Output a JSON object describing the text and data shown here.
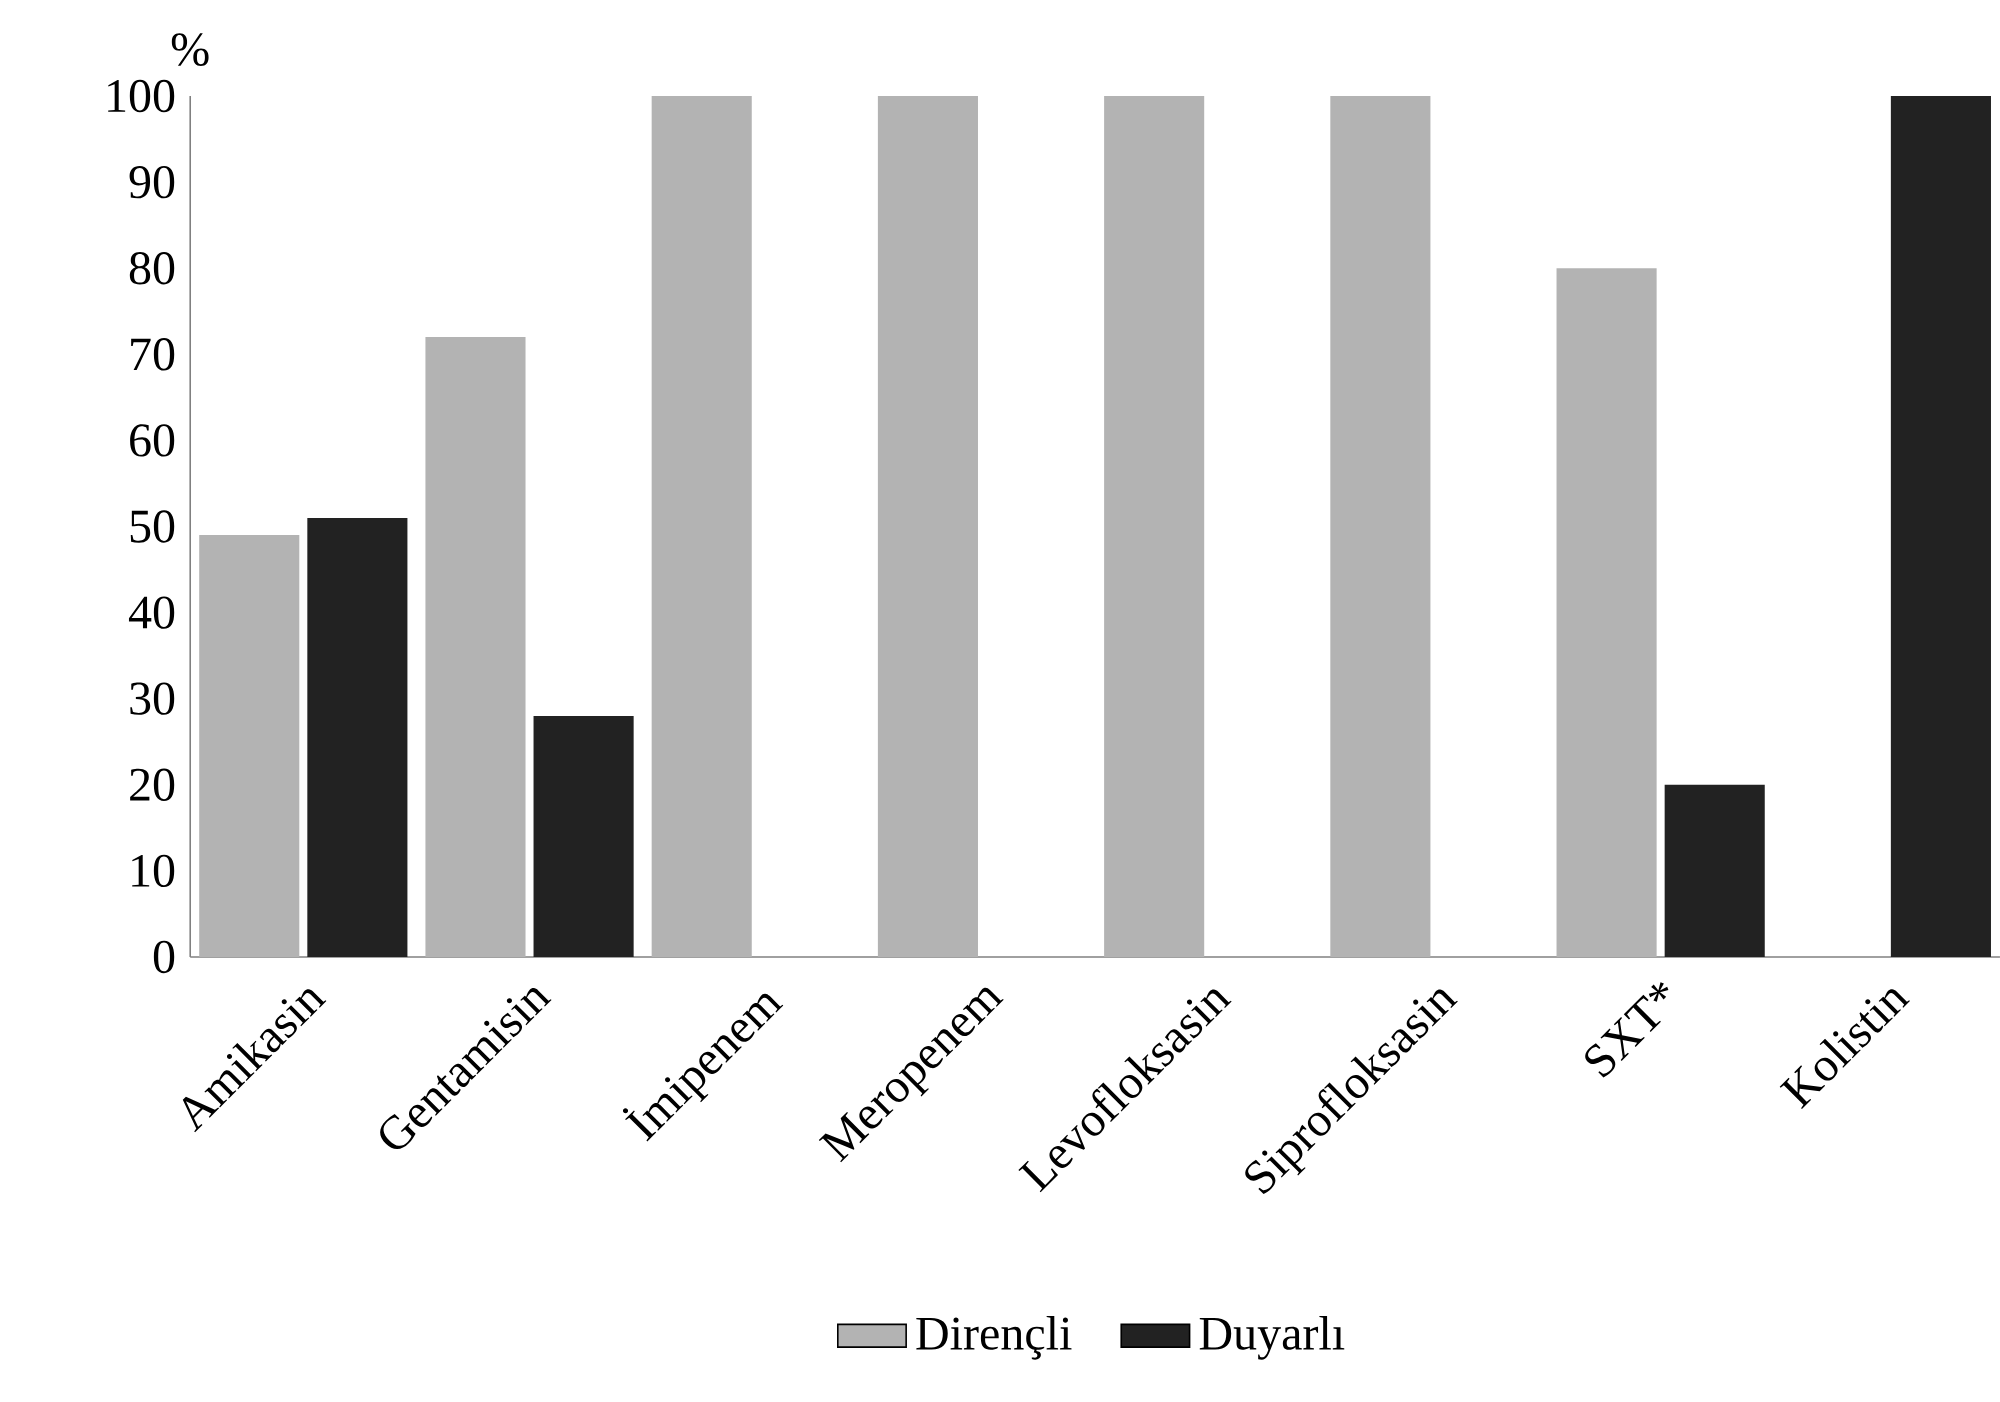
{
  "chart_data": {
    "type": "bar",
    "ylabel": "%",
    "categories": [
      "Amikasin",
      "Gentamisin",
      "İmipenem",
      "Meropenem",
      "Levofloksasin",
      "Siprofloksasin",
      "SXT*",
      "Kolistin"
    ],
    "series": [
      {
        "name": "Dirençli",
        "color": "#b3b3b3",
        "values": [
          49,
          72,
          100,
          100,
          100,
          100,
          80,
          0
        ]
      },
      {
        "name": "Duyarlı",
        "color": "#222222",
        "values": [
          51,
          28,
          0,
          0,
          0,
          0,
          20,
          100
        ]
      }
    ],
    "ylim": [
      0,
      100
    ],
    "yticks": [
      0,
      10,
      20,
      30,
      40,
      50,
      60,
      70,
      80,
      90,
      100
    ],
    "grid": false,
    "legend": "bottom"
  }
}
